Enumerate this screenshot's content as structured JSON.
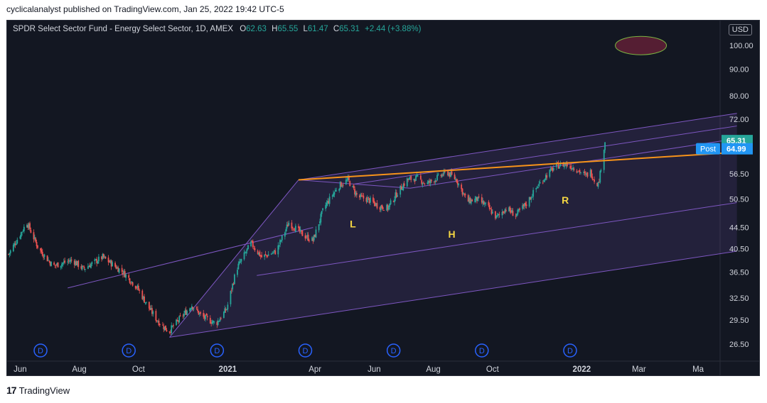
{
  "header": {
    "published": "cyclicalanalyst published on TradingView.com, Jan 25, 2022 19:42 UTC-5"
  },
  "legend": {
    "symbol": "SPDR Select Sector Fund - Energy Select Sector, 1D, AMEX",
    "o_label": "O",
    "o": "62.63",
    "h_label": "H",
    "h": "65.55",
    "l_label": "L",
    "l": "61.47",
    "c_label": "C",
    "c": "65.31",
    "change": "+2.44 (+3.88%)"
  },
  "currency": "USD",
  "footer": {
    "brand": "TradingView",
    "logo": "17"
  },
  "colors": {
    "up": "#26a69a",
    "down": "#ef5350",
    "channel": "#7e57c2",
    "trendline": "#f7931a",
    "annotation": "#f5d742",
    "dividend": "#2962ff"
  },
  "chart_data": {
    "type": "candlestick",
    "price_scale": "log",
    "ylim": [
      25.5,
      110
    ],
    "price_ticks": [
      "100.00",
      "90.00",
      "80.00",
      "72.00",
      "65.31",
      "64.99",
      "56.50",
      "50.50",
      "44.50",
      "40.50",
      "36.50",
      "32.50",
      "29.50",
      "26.50"
    ],
    "last_price": "65.31",
    "post_label": "Post",
    "post_price": "64.99",
    "x_ticks": [
      "Jun",
      "Aug",
      "Oct",
      "2021",
      "Apr",
      "Jun",
      "Aug",
      "Oct",
      "2022",
      "Mar",
      "Ma"
    ],
    "annotations": [
      {
        "text": "L",
        "date": "2021-05-10",
        "price": 44.5
      },
      {
        "text": "H",
        "date": "2021-08-20",
        "price": 42.5
      },
      {
        "text": "R",
        "date": "2021-12-15",
        "price": 49.5
      }
    ],
    "dividend_marker": "D",
    "dividend_dates": [
      "2020-06-22",
      "2020-09-21",
      "2020-12-21",
      "2021-03-22",
      "2021-06-21",
      "2021-09-20",
      "2021-12-20"
    ],
    "price_path": [
      [
        "2020-05-20",
        39.5
      ],
      [
        "2020-06-08",
        45.5
      ],
      [
        "2020-06-20",
        40.5
      ],
      [
        "2020-07-05",
        37.5
      ],
      [
        "2020-07-25",
        38.5
      ],
      [
        "2020-08-05",
        37.0
      ],
      [
        "2020-08-25",
        39.0
      ],
      [
        "2020-09-15",
        36.5
      ],
      [
        "2020-09-30",
        34.0
      ],
      [
        "2020-10-10",
        31.5
      ],
      [
        "2020-10-20",
        29.5
      ],
      [
        "2020-11-01",
        28.0
      ],
      [
        "2020-11-15",
        30.0
      ],
      [
        "2020-11-25",
        31.5
      ],
      [
        "2020-12-05",
        30.0
      ],
      [
        "2020-12-20",
        29.0
      ],
      [
        "2020-12-31",
        31.0
      ],
      [
        "2021-01-10",
        37.0
      ],
      [
        "2021-01-25",
        41.5
      ],
      [
        "2021-02-05",
        39.0
      ],
      [
        "2021-02-20",
        40.0
      ],
      [
        "2021-03-05",
        45.5
      ],
      [
        "2021-03-20",
        43.0
      ],
      [
        "2021-03-30",
        42.0
      ],
      [
        "2021-04-10",
        48.5
      ],
      [
        "2021-04-25",
        53.5
      ],
      [
        "2021-05-05",
        55.0
      ],
      [
        "2021-05-15",
        51.0
      ],
      [
        "2021-05-25",
        50.5
      ],
      [
        "2021-06-05",
        49.0
      ],
      [
        "2021-06-15",
        48.5
      ],
      [
        "2021-06-25",
        52.0
      ],
      [
        "2021-07-05",
        55.0
      ],
      [
        "2021-07-15",
        55.5
      ],
      [
        "2021-07-25",
        54.0
      ],
      [
        "2021-08-05",
        55.5
      ],
      [
        "2021-08-15",
        57.0
      ],
      [
        "2021-08-25",
        55.0
      ],
      [
        "2021-09-05",
        50.0
      ],
      [
        "2021-09-15",
        50.5
      ],
      [
        "2021-09-25",
        49.0
      ],
      [
        "2021-10-05",
        46.5
      ],
      [
        "2021-10-15",
        48.5
      ],
      [
        "2021-10-25",
        47.0
      ],
      [
        "2021-11-05",
        49.5
      ],
      [
        "2021-11-15",
        53.0
      ],
      [
        "2021-11-25",
        56.0
      ],
      [
        "2021-12-05",
        58.5
      ],
      [
        "2021-12-15",
        59.0
      ],
      [
        "2021-12-25",
        58.0
      ],
      [
        "2022-01-05",
        56.0
      ],
      [
        "2022-01-10",
        57.0
      ],
      [
        "2022-01-14",
        55.0
      ],
      [
        "2022-01-18",
        54.0
      ],
      [
        "2022-01-20",
        56.5
      ],
      [
        "2022-01-22",
        60.0
      ],
      [
        "2022-01-24",
        63.5
      ],
      [
        "2022-01-25",
        65.31
      ]
    ],
    "pitchfork": {
      "p0": [
        "2020-11-02",
        27.3
      ],
      "p1": [
        "2021-03-15",
        55.0
      ],
      "p2": [
        "2021-07-08",
        53.0
      ],
      "end": "2022-06-10",
      "slope_per_day": 0.000655
    },
    "early_channel": {
      "start": [
        "2020-07-20",
        34.0
      ],
      "end": [
        "2021-03-30",
        44.5
      ]
    },
    "trendline": {
      "start": [
        "2021-03-15",
        55.0
      ],
      "end": [
        "2022-06-10",
        62.2
      ]
    },
    "ellipse": {
      "date": "2022-03-03",
      "price": 100.0
    }
  }
}
